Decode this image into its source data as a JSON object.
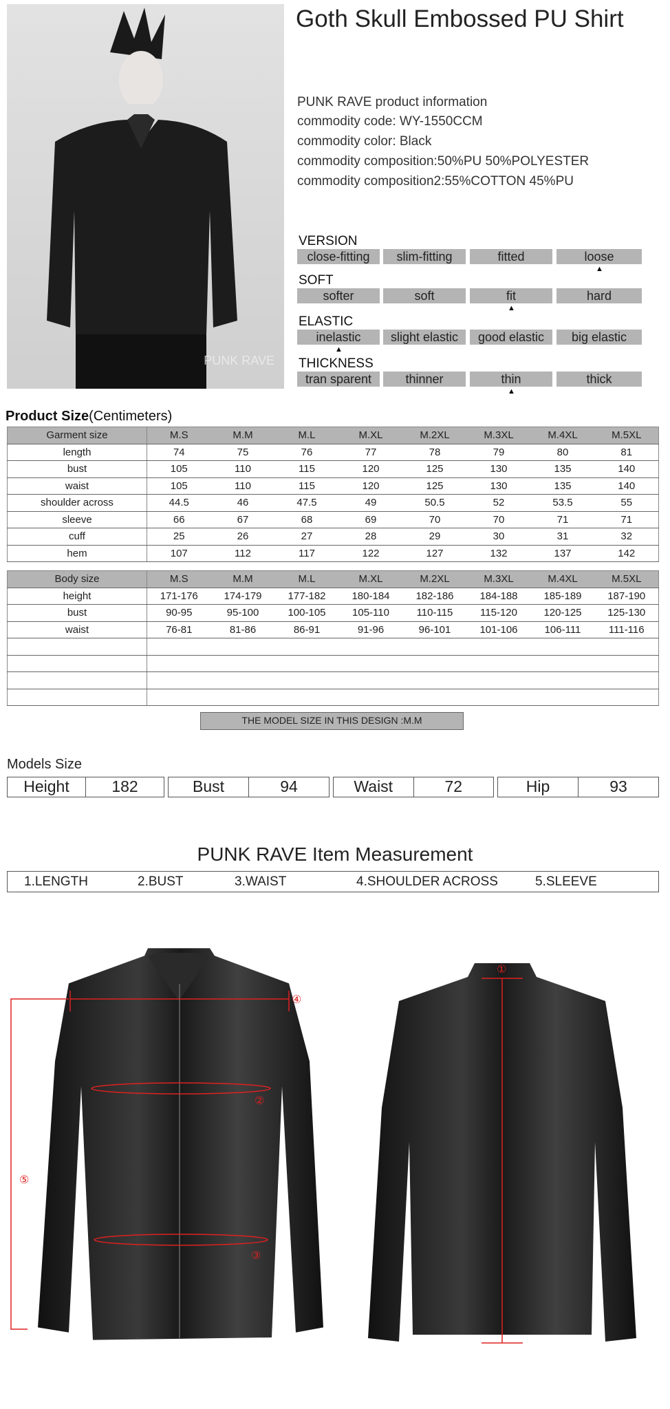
{
  "product": {
    "title": "Goth Skull Embossed PU Shirt",
    "photo_watermark": "PUNK RAVE",
    "info": [
      "PUNK RAVE product information",
      "commodity code: WY-1550CCM",
      "commodity color: Black",
      "commodity composition:50%PU   50%POLYESTER",
      "commodity composition2:55%COTTON 45%PU"
    ]
  },
  "attributes": [
    {
      "label": "VERSION",
      "options": [
        "close-fitting",
        "slim-fitting",
        "fitted",
        "loose"
      ],
      "selected": 3
    },
    {
      "label": "SOFT",
      "options": [
        "softer",
        "soft",
        "fit",
        "hard"
      ],
      "selected": 2
    },
    {
      "label": "ELASTIC",
      "options": [
        "inelastic",
        "slight elastic",
        "good elastic",
        "big elastic"
      ],
      "selected": 0
    },
    {
      "label": "THICKNESS",
      "options": [
        "tran sparent",
        "thinner",
        "thin",
        "thick"
      ],
      "selected": 2
    }
  ],
  "product_size": {
    "title": "Product Size",
    "unit": "(Centimeters)",
    "garment": {
      "header": [
        "Garment size",
        "M.S",
        "M.M",
        "M.L",
        "M.XL",
        "M.2XL",
        "M.3XL",
        "M.4XL",
        "M.5XL"
      ],
      "rows": [
        [
          "length",
          "74",
          "75",
          "76",
          "77",
          "78",
          "79",
          "80",
          "81"
        ],
        [
          "bust",
          "105",
          "110",
          "115",
          "120",
          "125",
          "130",
          "135",
          "140"
        ],
        [
          "waist",
          "105",
          "110",
          "115",
          "120",
          "125",
          "130",
          "135",
          "140"
        ],
        [
          "shoulder across",
          "44.5",
          "46",
          "47.5",
          "49",
          "50.5",
          "52",
          "53.5",
          "55"
        ],
        [
          "sleeve",
          "66",
          "67",
          "68",
          "69",
          "70",
          "70",
          "71",
          "71"
        ],
        [
          "cuff",
          "25",
          "26",
          "27",
          "28",
          "29",
          "30",
          "31",
          "32"
        ],
        [
          "hem",
          "107",
          "112",
          "117",
          "122",
          "127",
          "132",
          "137",
          "142"
        ]
      ]
    },
    "body": {
      "header": [
        "Body size",
        "M.S",
        "M.M",
        "M.L",
        "M.XL",
        "M.2XL",
        "M.3XL",
        "M.4XL",
        "M.5XL"
      ],
      "rows": [
        [
          "height",
          "171-176",
          "174-179",
          "177-182",
          "180-184",
          "182-186",
          "184-188",
          "185-189",
          "187-190"
        ],
        [
          "bust",
          "90-95",
          "95-100",
          "100-105",
          "105-110",
          "110-115",
          "115-120",
          "120-125",
          "125-130"
        ],
        [
          "waist",
          "76-81",
          "81-86",
          "86-91",
          "91-96",
          "96-101",
          "101-106",
          "106-111",
          "111-116"
        ]
      ],
      "empty_rows": 4
    },
    "model_note": "THE MODEL SIZE IN THIS DESIGN :M.M"
  },
  "models_size": {
    "title": "Models Size",
    "items": [
      {
        "label": "Height",
        "value": "182"
      },
      {
        "label": "Bust",
        "value": "94"
      },
      {
        "label": "Waist",
        "value": "72"
      },
      {
        "label": "Hip",
        "value": "93"
      }
    ]
  },
  "measurement": {
    "title": "PUNK RAVE Item  Measurement",
    "items": [
      "1.LENGTH",
      "2.BUST",
      "3.WAIST",
      "4.SHOULDER ACROSS",
      "5.SLEEVE"
    ],
    "markers": [
      "①",
      "②",
      "③",
      "④",
      "⑤"
    ],
    "marker_color": "#e02020"
  }
}
